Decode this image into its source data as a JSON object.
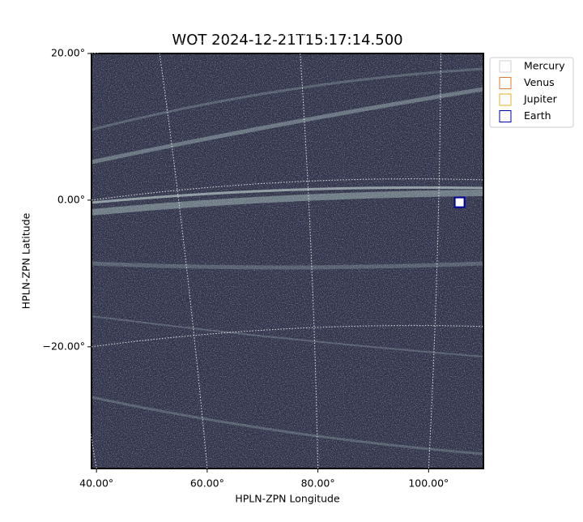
{
  "chart_data": {
    "type": "image",
    "title": "WOT 2024-12-21T15:17:14.500",
    "xlabel": "HPLN-ZPN Longitude",
    "ylabel": "HPLN-ZPN Latitude",
    "xlim": [
      39.1,
      109.9
    ],
    "ylim": [
      -36.6,
      20
    ],
    "xticks": [
      {
        "value": 40,
        "label": "40.00°"
      },
      {
        "value": 60,
        "label": "60.00°"
      },
      {
        "value": 80,
        "label": "80.00°"
      },
      {
        "value": 100,
        "label": "100.00°"
      }
    ],
    "yticks": [
      {
        "value": 20,
        "label": "20.00°"
      },
      {
        "value": 0,
        "label": "0.00°"
      },
      {
        "value": -20,
        "label": "−20.00°"
      }
    ],
    "grid": true,
    "legend": "upper right",
    "series": [
      {
        "name": "Mercury",
        "color": "#d0d0d0",
        "x": [],
        "y": []
      },
      {
        "name": "Venus",
        "color": "#e07b39",
        "x": [],
        "y": []
      },
      {
        "name": "Jupiter",
        "color": "#e0b020",
        "x": [],
        "y": []
      },
      {
        "name": "Earth",
        "color": "#0000a0",
        "x": [
          105.6
        ],
        "y": [
          -0.3
        ]
      }
    ]
  }
}
